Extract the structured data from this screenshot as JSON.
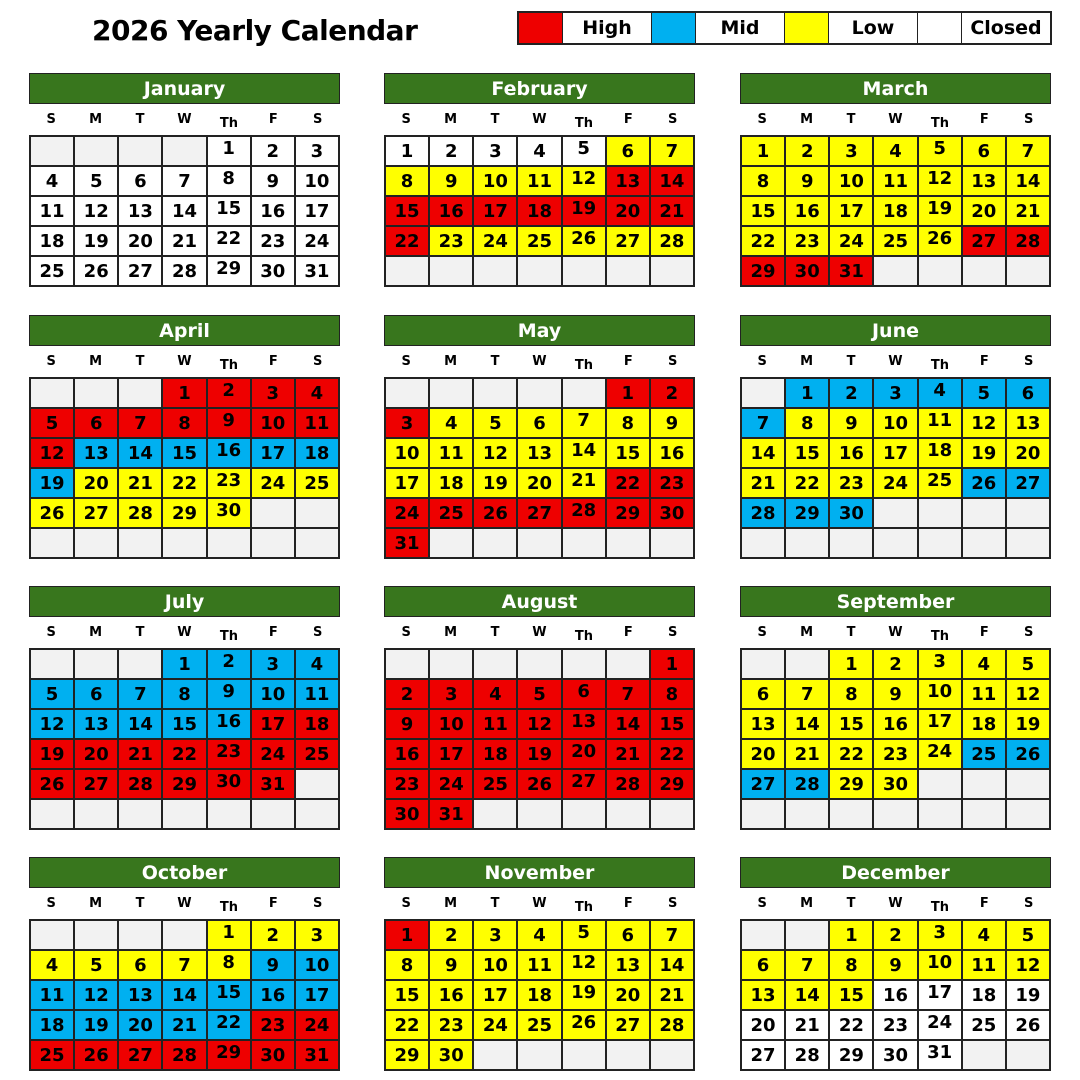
{
  "title": "2026 Yearly Calendar",
  "legend": [
    {
      "label": "High",
      "color": "#ee0000"
    },
    {
      "label": "Mid",
      "color": "#00b0f0"
    },
    {
      "label": "Low",
      "color": "#ffff00"
    },
    {
      "label": "Closed",
      "color": "#ffffff"
    }
  ],
  "header_color": "#38761d",
  "weekdays": [
    "S",
    "M",
    "T",
    "W",
    "Th",
    "F",
    "S"
  ],
  "months": [
    {
      "name": "January",
      "start_weekday": 4,
      "days": 31,
      "levels": [
        {
          "from": 1,
          "to": 31,
          "level": "Closed"
        }
      ]
    },
    {
      "name": "February",
      "start_weekday": 0,
      "days": 28,
      "levels": [
        {
          "from": 1,
          "to": 5,
          "level": "Closed"
        },
        {
          "from": 6,
          "to": 12,
          "level": "Low"
        },
        {
          "from": 13,
          "to": 22,
          "level": "High"
        },
        {
          "from": 23,
          "to": 28,
          "level": "Low"
        }
      ]
    },
    {
      "name": "March",
      "start_weekday": 0,
      "days": 31,
      "levels": [
        {
          "from": 1,
          "to": 26,
          "level": "Low"
        },
        {
          "from": 27,
          "to": 31,
          "level": "High"
        }
      ]
    },
    {
      "name": "April",
      "start_weekday": 3,
      "days": 30,
      "levels": [
        {
          "from": 1,
          "to": 12,
          "level": "High"
        },
        {
          "from": 13,
          "to": 19,
          "level": "Mid"
        },
        {
          "from": 20,
          "to": 30,
          "level": "Low"
        }
      ]
    },
    {
      "name": "May",
      "start_weekday": 5,
      "days": 31,
      "levels": [
        {
          "from": 1,
          "to": 3,
          "level": "High"
        },
        {
          "from": 4,
          "to": 21,
          "level": "Low"
        },
        {
          "from": 22,
          "to": 31,
          "level": "High"
        }
      ]
    },
    {
      "name": "June",
      "start_weekday": 1,
      "days": 30,
      "levels": [
        {
          "from": 1,
          "to": 7,
          "level": "Mid"
        },
        {
          "from": 8,
          "to": 25,
          "level": "Low"
        },
        {
          "from": 26,
          "to": 30,
          "level": "Mid"
        }
      ]
    },
    {
      "name": "July",
      "start_weekday": 3,
      "days": 31,
      "levels": [
        {
          "from": 1,
          "to": 16,
          "level": "Mid"
        },
        {
          "from": 17,
          "to": 31,
          "level": "High"
        }
      ]
    },
    {
      "name": "August",
      "start_weekday": 6,
      "days": 31,
      "levels": [
        {
          "from": 1,
          "to": 31,
          "level": "High"
        }
      ]
    },
    {
      "name": "September",
      "start_weekday": 2,
      "days": 30,
      "levels": [
        {
          "from": 1,
          "to": 24,
          "level": "Low"
        },
        {
          "from": 25,
          "to": 28,
          "level": "Mid"
        },
        {
          "from": 29,
          "to": 30,
          "level": "Low"
        }
      ]
    },
    {
      "name": "October",
      "start_weekday": 4,
      "days": 31,
      "levels": [
        {
          "from": 1,
          "to": 8,
          "level": "Low"
        },
        {
          "from": 9,
          "to": 22,
          "level": "Mid"
        },
        {
          "from": 23,
          "to": 31,
          "level": "High"
        }
      ]
    },
    {
      "name": "November",
      "start_weekday": 0,
      "days": 30,
      "levels": [
        {
          "from": 1,
          "to": 1,
          "level": "High"
        },
        {
          "from": 2,
          "to": 30,
          "level": "Low"
        }
      ]
    },
    {
      "name": "December",
      "start_weekday": 2,
      "days": 31,
      "levels": [
        {
          "from": 1,
          "to": 15,
          "level": "Low"
        },
        {
          "from": 16,
          "to": 31,
          "level": "Closed"
        }
      ]
    }
  ]
}
